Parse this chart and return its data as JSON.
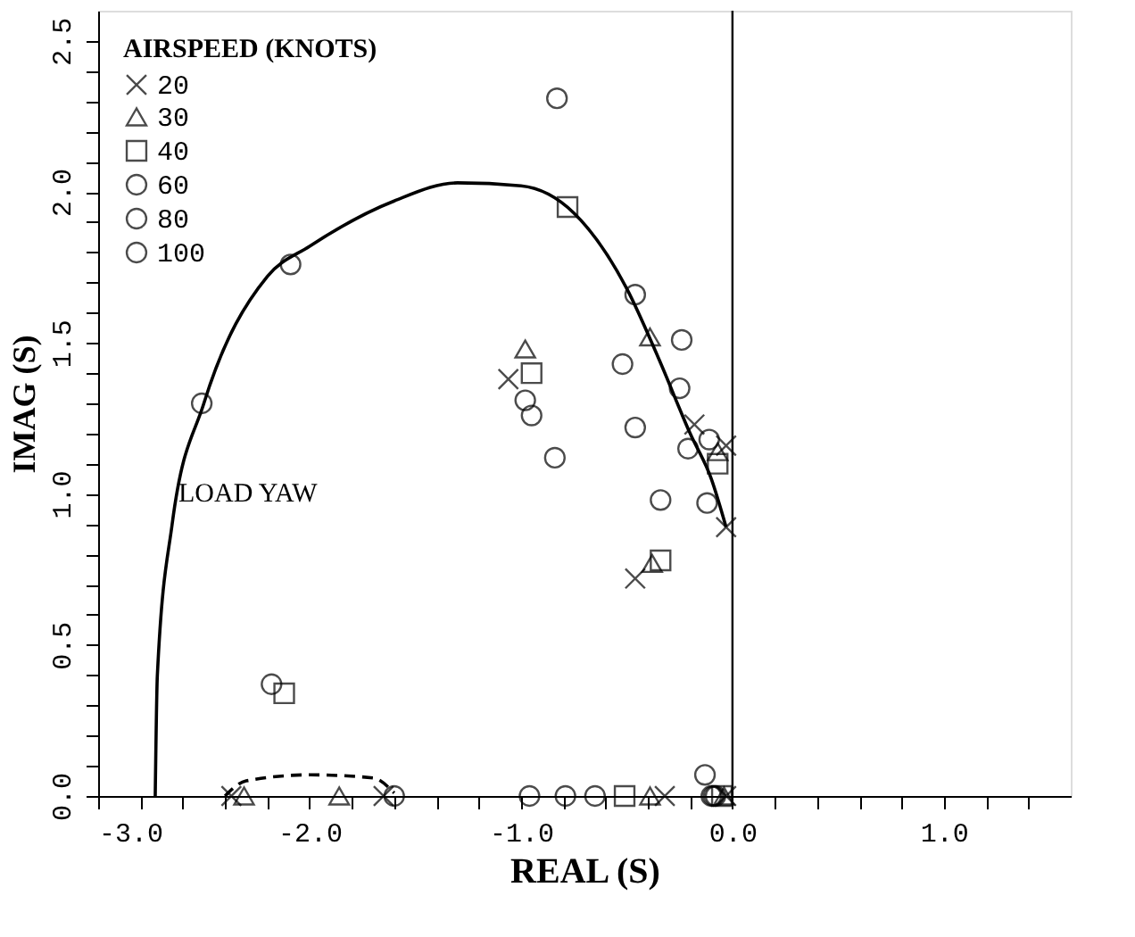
{
  "chart_data": {
    "type": "scatter",
    "xlabel": "REAL (S)",
    "ylabel": "IMAG (S)",
    "legend_title": "AIRSPEED (KNOTS)",
    "legend": "top left",
    "grid": false,
    "xlim": [
      -3.0,
      1.6
    ],
    "ylim": [
      0,
      2.6
    ],
    "xticks": [
      {
        "value": -3.0,
        "label": "-3.0"
      },
      {
        "value": -2.8,
        "label": null
      },
      {
        "value": -2.6,
        "label": null
      },
      {
        "value": -2.4,
        "label": null
      },
      {
        "value": -2.2,
        "label": null
      },
      {
        "value": -2.0,
        "label": "-2.0"
      },
      {
        "value": -1.8,
        "label": null
      },
      {
        "value": -1.6,
        "label": null
      },
      {
        "value": -1.4,
        "label": null
      },
      {
        "value": -1.2,
        "label": null
      },
      {
        "value": -1.0,
        "label": "-1.0"
      },
      {
        "value": -0.8,
        "label": null
      },
      {
        "value": -0.6,
        "label": null
      },
      {
        "value": -0.4,
        "label": null
      },
      {
        "value": -0.2,
        "label": null
      },
      {
        "value": 0.0,
        "label": "0.0"
      },
      {
        "value": 0.2,
        "label": null
      },
      {
        "value": 0.4,
        "label": null
      },
      {
        "value": 0.6,
        "label": null
      },
      {
        "value": 0.8,
        "label": null
      },
      {
        "value": 1.0,
        "label": "1.0"
      },
      {
        "value": 1.2,
        "label": null
      },
      {
        "value": 1.4,
        "label": null
      }
    ],
    "yticks": [
      {
        "value": 0.0,
        "label": "0.0"
      },
      {
        "value": 0.1,
        "label": null
      },
      {
        "value": 0.2,
        "label": null
      },
      {
        "value": 0.3,
        "label": null
      },
      {
        "value": 0.4,
        "label": null
      },
      {
        "value": 0.5,
        "label": "0.5"
      },
      {
        "value": 0.6,
        "label": null
      },
      {
        "value": 0.7,
        "label": null
      },
      {
        "value": 0.8,
        "label": null
      },
      {
        "value": 0.9,
        "label": null
      },
      {
        "value": 1.0,
        "label": "1.0"
      },
      {
        "value": 1.1,
        "label": null
      },
      {
        "value": 1.2,
        "label": null
      },
      {
        "value": 1.3,
        "label": null
      },
      {
        "value": 1.4,
        "label": null
      },
      {
        "value": 1.5,
        "label": "1.5"
      },
      {
        "value": 1.6,
        "label": null
      },
      {
        "value": 1.7,
        "label": null
      },
      {
        "value": 1.8,
        "label": null
      },
      {
        "value": 1.9,
        "label": null
      },
      {
        "value": 2.0,
        "label": "2.0"
      },
      {
        "value": 2.1,
        "label": null
      },
      {
        "value": 2.2,
        "label": null
      },
      {
        "value": 2.3,
        "label": null
      },
      {
        "value": 2.4,
        "label": null
      },
      {
        "value": 2.5,
        "label": "2.5"
      }
    ],
    "ref_lines": [
      {
        "axis": "x",
        "value": 0.0,
        "color": "#000000"
      }
    ],
    "annotations": [
      "LOAD YAW"
    ],
    "series": [
      {
        "name": "20",
        "color": "#000000",
        "marker": "cross",
        "x": [
          -1.06,
          -0.18,
          -0.03,
          -0.03,
          -0.46,
          -2.37,
          -1.65,
          -0.32,
          -0.03
        ],
        "values": [
          1.38,
          1.23,
          1.16,
          0.89,
          0.72,
          0,
          0,
          0,
          0
        ]
      },
      {
        "name": "30",
        "color": "#000000",
        "marker": "triangle",
        "x": [
          -0.98,
          -0.39,
          -0.07,
          -0.38,
          -2.31,
          -1.86,
          -0.39,
          -0.04
        ],
        "values": [
          1.48,
          1.52,
          1.14,
          0.77,
          0,
          0,
          0,
          0
        ]
      },
      {
        "name": "40",
        "color": "#000000",
        "marker": "square",
        "x": [
          -0.78,
          -0.95,
          -0.07,
          -0.34,
          -2.12,
          -0.51,
          -0.05
        ],
        "values": [
          1.95,
          1.4,
          1.1,
          0.78,
          0.34,
          0,
          0
        ]
      },
      {
        "name": "60",
        "color": "#000000",
        "marker": "circle",
        "x": [
          -2.09,
          -0.98,
          -0.25,
          -0.34,
          -0.12,
          -2.18,
          -1.6,
          -0.65,
          -0.08
        ],
        "values": [
          1.76,
          1.31,
          1.35,
          0.98,
          0.97,
          0.37,
          0,
          0,
          0
        ]
      },
      {
        "name": "80",
        "color": "#000000",
        "marker": "circle",
        "x": [
          -2.51,
          -0.46,
          -0.11,
          -0.79,
          -0.09
        ],
        "values": [
          1.3,
          1.22,
          1.18,
          0,
          0
        ]
      },
      {
        "name": "100",
        "color": "#000000",
        "marker": "circle",
        "x": [
          -0.83,
          -0.95,
          -0.46,
          -0.24,
          -0.52,
          -0.21,
          -0.84,
          -0.13,
          -0.96,
          -0.1
        ],
        "values": [
          2.31,
          1.26,
          1.66,
          1.51,
          1.43,
          1.15,
          1.12,
          0.07,
          0,
          0
        ]
      },
      {
        "type": "line",
        "color": "#000000",
        "marker": "none",
        "line_style": "solid",
        "x": [
          -0.03,
          -0.1,
          -0.2,
          -0.35,
          -0.5,
          -0.75,
          -1.0,
          -1.3,
          -1.6,
          -2.0,
          -2.2,
          -2.5,
          -2.65,
          -2.72,
          -2.73
        ],
        "values": [
          0.89,
          1.05,
          1.2,
          1.45,
          1.68,
          1.93,
          2.02,
          2.03,
          1.97,
          1.82,
          1.72,
          1.3,
          0.9,
          0.4,
          0.0
        ]
      },
      {
        "type": "line",
        "color": "#000000",
        "marker": "none",
        "line_style": "dashed",
        "x": [
          -2.4,
          -2.3,
          -2.0,
          -1.7,
          -1.6
        ],
        "values": [
          0.0,
          0.05,
          0.07,
          0.06,
          0.01
        ]
      }
    ]
  }
}
